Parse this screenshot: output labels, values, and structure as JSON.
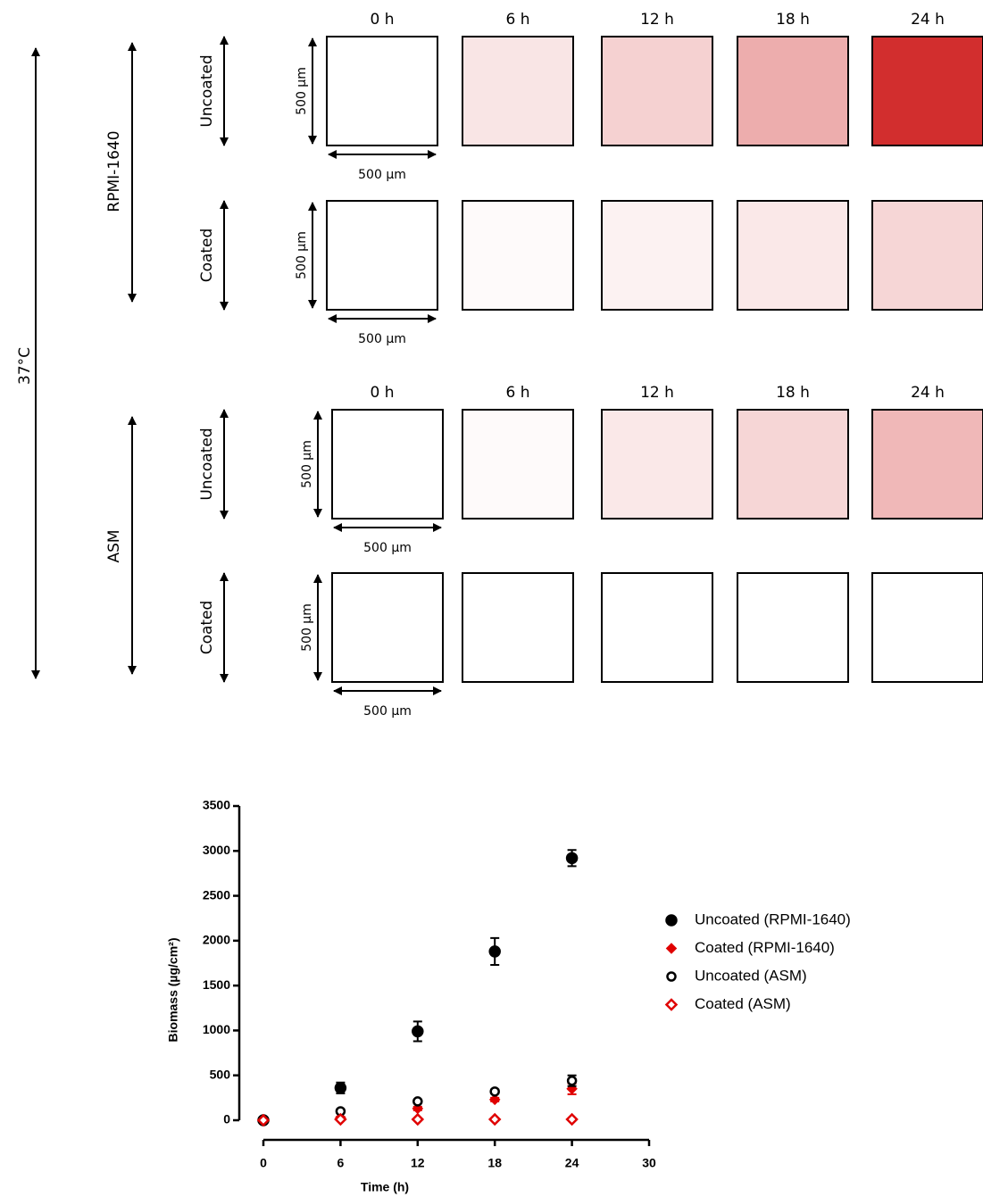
{
  "panels": {
    "temperature": "37°C",
    "time_labels": [
      "0 h",
      "6 h",
      "12 h",
      "18 h",
      "24 h"
    ],
    "scale": "500 µm",
    "groups": [
      {
        "medium": "RPMI-1640",
        "rows": [
          "Uncoated",
          "Coated"
        ]
      },
      {
        "medium": "ASM",
        "rows": [
          "Uncoated",
          "Coated"
        ]
      }
    ]
  },
  "chart_data": {
    "type": "scatter",
    "xlabel": "Time (h)",
    "ylabel": "Biomass (µg/cm²)",
    "x": [
      0,
      6,
      12,
      18,
      24
    ],
    "xlim": [
      0,
      30
    ],
    "xticks": [
      0,
      6,
      12,
      18,
      24,
      30
    ],
    "ylim": [
      0,
      3500
    ],
    "yticks": [
      0,
      500,
      1000,
      1500,
      2000,
      2500,
      3000,
      3500
    ],
    "legend": "right",
    "series": [
      {
        "name": "Uncoated (RPMI-1640)",
        "color": "#000000",
        "marker": "circle",
        "filled": true,
        "values": [
          0,
          360,
          990,
          1880,
          2920
        ],
        "errors": [
          0,
          60,
          110,
          150,
          90
        ]
      },
      {
        "name": "Coated (RPMI-1640)",
        "color": "#e00000",
        "marker": "diamond",
        "filled": true,
        "values": [
          0,
          30,
          130,
          230,
          350
        ],
        "errors": [
          0,
          10,
          20,
          20,
          60
        ]
      },
      {
        "name": "Uncoated (ASM)",
        "color": "#000000",
        "marker": "circle",
        "filled": false,
        "values": [
          0,
          100,
          210,
          320,
          440
        ],
        "errors": [
          0,
          20,
          20,
          20,
          60
        ]
      },
      {
        "name": "Coated (ASM)",
        "color": "#e00000",
        "marker": "diamond",
        "filled": false,
        "values": [
          0,
          10,
          10,
          10,
          10
        ],
        "errors": [
          0,
          0,
          0,
          0,
          0
        ]
      }
    ]
  }
}
